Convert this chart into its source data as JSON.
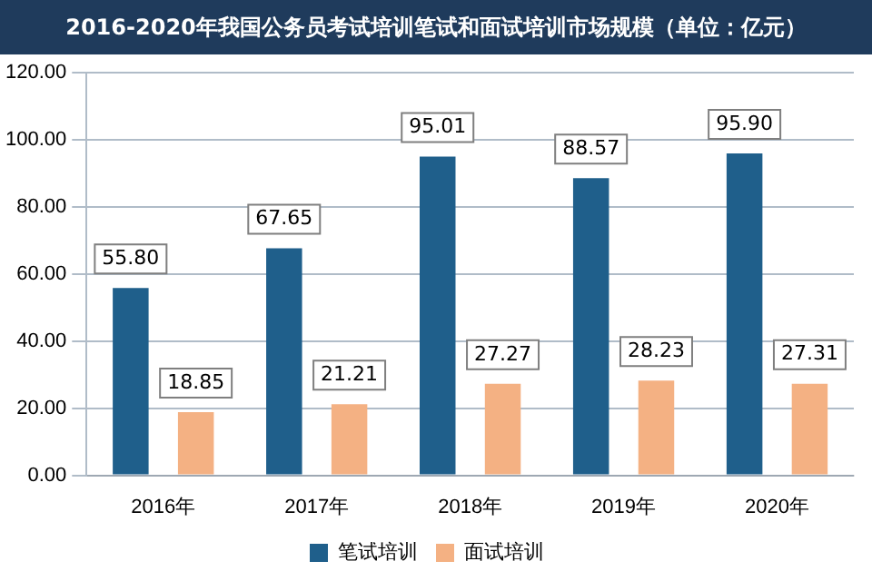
{
  "chart_data": {
    "type": "bar",
    "title": "2016-2020年我国公务员考试培训笔试和面试培训市场规模（单位：亿元）",
    "categories": [
      "2016年",
      "2017年",
      "2018年",
      "2019年",
      "2020年"
    ],
    "series": [
      {
        "name": "笔试培训",
        "color": "#1f5f8b",
        "values": [
          55.8,
          67.65,
          95.01,
          88.57,
          95.9
        ],
        "value_labels": [
          "55.80",
          "67.65",
          "95.01",
          "88.57",
          "95.90"
        ]
      },
      {
        "name": "面试培训",
        "color": "#f4b183",
        "values": [
          18.85,
          21.21,
          27.27,
          28.23,
          27.31
        ],
        "value_labels": [
          "18.85",
          "21.21",
          "27.27",
          "28.23",
          "27.31"
        ]
      }
    ],
    "ylim": [
      0,
      120
    ],
    "yticks": [
      {
        "value": 0,
        "label": "0.00"
      },
      {
        "value": 20,
        "label": "20.00"
      },
      {
        "value": 40,
        "label": "40.00"
      },
      {
        "value": 60,
        "label": "60.00"
      },
      {
        "value": 80,
        "label": "80.00"
      },
      {
        "value": 100,
        "label": "100.00"
      },
      {
        "value": 120,
        "label": "120.00"
      }
    ],
    "grid": "y",
    "legend": "bottom"
  }
}
